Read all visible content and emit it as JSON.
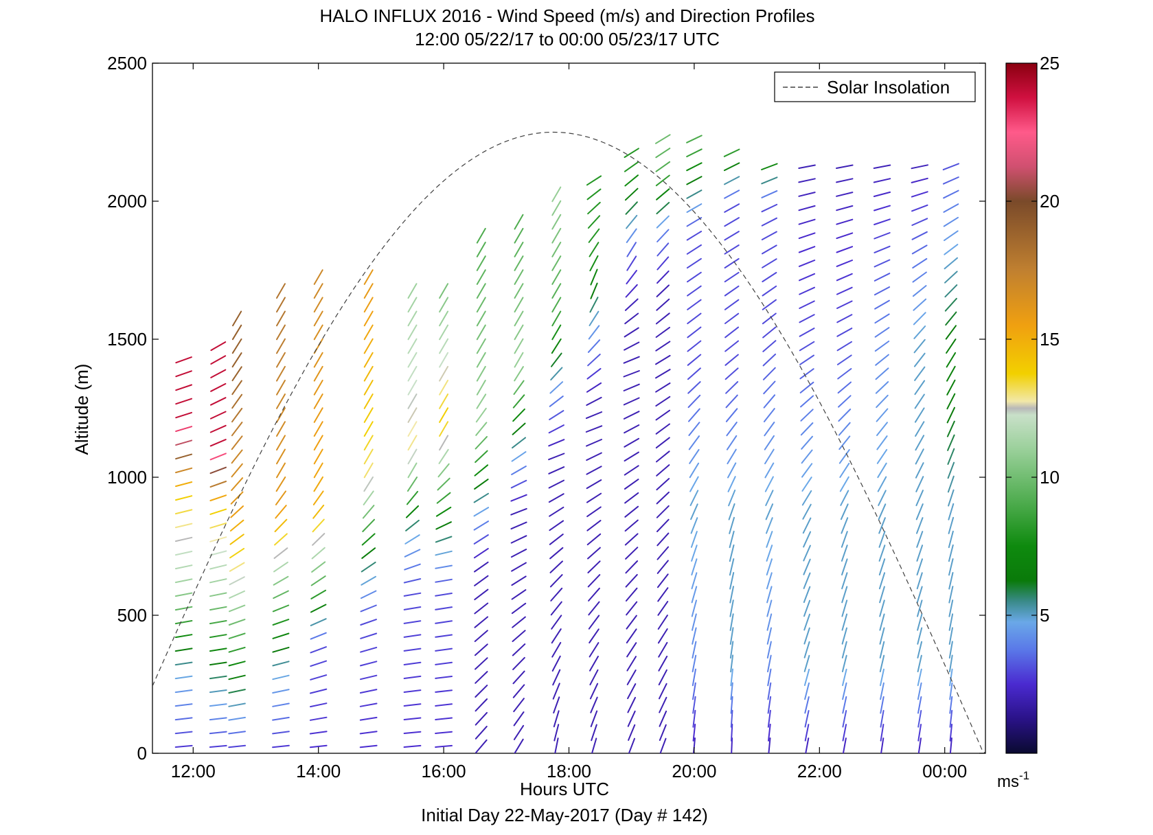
{
  "chart_data": {
    "type": "wind_profile",
    "title": "HALO INFLUX 2016 - Wind Speed (m/s) and Direction Profiles",
    "subtitle": "12:00 05/22/17 to 00:00 05/23/17  UTC",
    "xlabel": "Hours UTC",
    "ylabel": "Altitude (m)",
    "footer": "Initial Day 22-May-2017 (Day # 142)",
    "x_ticks": [
      "12:00",
      "14:00",
      "16:00",
      "18:00",
      "20:00",
      "22:00",
      "00:00"
    ],
    "y_ticks": [
      0,
      500,
      1000,
      1500,
      2000,
      2500
    ],
    "ylim": [
      0,
      2500
    ],
    "xlim_hours": [
      11.35,
      24.65
    ],
    "legend": {
      "label": "Solar Insolation",
      "position": "top-right"
    },
    "colorbar": {
      "ticks": [
        5,
        10,
        15,
        20,
        25
      ],
      "unit": "ms",
      "unit_exponent": "-1",
      "range": [
        0,
        25
      ]
    },
    "solar_insolation_peak_hour": 17.75,
    "solar_insolation_peak_altitude": 2250,
    "profiles": [
      {
        "t": 11.85,
        "top": 1450,
        "speeds": [
          [
            0,
            2.5
          ],
          [
            300,
            5
          ],
          [
            600,
            11
          ],
          [
            950,
            14
          ],
          [
            1200,
            24
          ]
        ],
        "dir": [
          [
            0,
            95
          ],
          [
            500,
            100
          ],
          [
            1000,
            105
          ],
          [
            1450,
            110
          ]
        ]
      },
      {
        "t": 12.4,
        "top": 1500,
        "speeds": [
          [
            0,
            2.5
          ],
          [
            300,
            6
          ],
          [
            600,
            11
          ],
          [
            900,
            14
          ],
          [
            1100,
            24
          ]
        ],
        "dir": [
          [
            0,
            95
          ],
          [
            500,
            100
          ],
          [
            1000,
            110
          ],
          [
            1450,
            120
          ]
        ]
      },
      {
        "t": 12.7,
        "top": 1600,
        "speeds": [
          [
            0,
            2.5
          ],
          [
            300,
            7
          ],
          [
            600,
            12
          ],
          [
            900,
            16
          ],
          [
            1400,
            19
          ]
        ],
        "dir": [
          [
            0,
            95
          ],
          [
            500,
            110
          ],
          [
            1000,
            140
          ],
          [
            1600,
            150
          ]
        ]
      },
      {
        "t": 13.4,
        "top": 1700,
        "speeds": [
          [
            0,
            2.5
          ],
          [
            300,
            5
          ],
          [
            600,
            10
          ],
          [
            900,
            16
          ],
          [
            1600,
            18
          ]
        ],
        "dir": [
          [
            0,
            95
          ],
          [
            500,
            110
          ],
          [
            1000,
            150
          ],
          [
            1700,
            150
          ]
        ]
      },
      {
        "t": 14.0,
        "top": 1750,
        "speeds": [
          [
            0,
            2.5
          ],
          [
            400,
            3
          ],
          [
            600,
            9
          ],
          [
            900,
            15
          ],
          [
            1700,
            17
          ]
        ],
        "dir": [
          [
            0,
            95
          ],
          [
            500,
            115
          ],
          [
            1000,
            150
          ],
          [
            1750,
            150
          ]
        ]
      },
      {
        "t": 14.8,
        "top": 1750,
        "speeds": [
          [
            0,
            2.5
          ],
          [
            500,
            3
          ],
          [
            700,
            6
          ],
          [
            1000,
            13
          ],
          [
            1700,
            16
          ]
        ],
        "dir": [
          [
            0,
            95
          ],
          [
            500,
            110
          ],
          [
            1000,
            150
          ],
          [
            1750,
            150
          ]
        ]
      },
      {
        "t": 15.5,
        "top": 1700,
        "speeds": [
          [
            0,
            2.5
          ],
          [
            600,
            3
          ],
          [
            800,
            5
          ],
          [
            1100,
            13
          ],
          [
            1700,
            11
          ]
        ],
        "dir": [
          [
            0,
            95
          ],
          [
            600,
            100
          ],
          [
            1000,
            150
          ],
          [
            1700,
            150
          ]
        ]
      },
      {
        "t": 16.0,
        "top": 1700,
        "speeds": [
          [
            0,
            2.5
          ],
          [
            600,
            3
          ],
          [
            800,
            6
          ],
          [
            1200,
            14
          ],
          [
            1700,
            10
          ]
        ],
        "dir": [
          [
            0,
            95
          ],
          [
            700,
            100
          ],
          [
            1100,
            150
          ],
          [
            1700,
            150
          ]
        ]
      },
      {
        "t": 16.6,
        "top": 1900,
        "speeds": [
          [
            0,
            2
          ],
          [
            700,
            2
          ],
          [
            900,
            5
          ],
          [
            1200,
            11
          ],
          [
            1900,
            9
          ]
        ],
        "dir": [
          [
            0,
            140
          ],
          [
            900,
            120
          ],
          [
            1300,
            150
          ],
          [
            1900,
            150
          ]
        ]
      },
      {
        "t": 17.2,
        "top": 1950,
        "speeds": [
          [
            0,
            2
          ],
          [
            900,
            2
          ],
          [
            1100,
            5
          ],
          [
            1400,
            11
          ],
          [
            1950,
            9
          ]
        ],
        "dir": [
          [
            0,
            150
          ],
          [
            900,
            110
          ],
          [
            1400,
            150
          ],
          [
            1950,
            150
          ]
        ]
      },
      {
        "t": 17.8,
        "top": 2050,
        "speeds": [
          [
            0,
            2
          ],
          [
            1100,
            2
          ],
          [
            1300,
            4
          ],
          [
            1600,
            9
          ],
          [
            2050,
            11
          ]
        ],
        "dir": [
          [
            0,
            170
          ],
          [
            1100,
            110
          ],
          [
            1500,
            150
          ],
          [
            2050,
            150
          ]
        ]
      },
      {
        "t": 18.4,
        "top": 2100,
        "speeds": [
          [
            0,
            2
          ],
          [
            1300,
            2
          ],
          [
            1500,
            4
          ],
          [
            1800,
            8
          ],
          [
            2100,
            8
          ]
        ],
        "dir": [
          [
            0,
            165
          ],
          [
            1200,
            110
          ],
          [
            1700,
            160
          ],
          [
            2100,
            120
          ]
        ]
      },
      {
        "t": 19.0,
        "top": 2200,
        "speeds": [
          [
            0,
            2
          ],
          [
            1600,
            2
          ],
          [
            1800,
            3
          ],
          [
            2100,
            8
          ],
          [
            2200,
            8
          ]
        ],
        "dir": [
          [
            0,
            160
          ],
          [
            1400,
            110
          ],
          [
            1800,
            150
          ],
          [
            2200,
            120
          ]
        ]
      },
      {
        "t": 19.5,
        "top": 2250,
        "speeds": [
          [
            0,
            2
          ],
          [
            1700,
            2
          ],
          [
            1900,
            4
          ],
          [
            2100,
            9
          ],
          [
            2250,
            10
          ]
        ],
        "dir": [
          [
            0,
            160
          ],
          [
            1400,
            120
          ],
          [
            1800,
            140
          ],
          [
            2250,
            120
          ]
        ]
      },
      {
        "t": 20.0,
        "top": 2250,
        "speeds": [
          [
            0,
            2
          ],
          [
            300,
            4
          ],
          [
            900,
            5
          ],
          [
            1400,
            3
          ],
          [
            1900,
            3
          ],
          [
            2200,
            9
          ]
        ],
        "dir": [
          [
            0,
            175
          ],
          [
            800,
            160
          ],
          [
            1400,
            130
          ],
          [
            2250,
            115
          ]
        ]
      },
      {
        "t": 20.6,
        "top": 2200,
        "speeds": [
          [
            0,
            2
          ],
          [
            300,
            5
          ],
          [
            900,
            5
          ],
          [
            1400,
            3
          ],
          [
            2000,
            3
          ],
          [
            2200,
            9
          ]
        ],
        "dir": [
          [
            0,
            178
          ],
          [
            800,
            165
          ],
          [
            1400,
            130
          ],
          [
            2200,
            115
          ]
        ]
      },
      {
        "t": 21.2,
        "top": 2150,
        "speeds": [
          [
            0,
            2
          ],
          [
            300,
            4
          ],
          [
            900,
            5
          ],
          [
            1500,
            3
          ],
          [
            2000,
            3
          ],
          [
            2150,
            8
          ]
        ],
        "dir": [
          [
            0,
            175
          ],
          [
            800,
            160
          ],
          [
            1500,
            130
          ],
          [
            2150,
            110
          ]
        ]
      },
      {
        "t": 21.8,
        "top": 2150,
        "speeds": [
          [
            0,
            2
          ],
          [
            300,
            5
          ],
          [
            900,
            5
          ],
          [
            1500,
            3
          ],
          [
            2150,
            2
          ]
        ],
        "dir": [
          [
            0,
            170
          ],
          [
            800,
            155
          ],
          [
            1500,
            120
          ],
          [
            2150,
            100
          ]
        ]
      },
      {
        "t": 22.4,
        "top": 2150,
        "speeds": [
          [
            0,
            2
          ],
          [
            300,
            5
          ],
          [
            900,
            5
          ],
          [
            1500,
            3
          ],
          [
            2150,
            2
          ]
        ],
        "dir": [
          [
            0,
            170
          ],
          [
            800,
            160
          ],
          [
            1500,
            120
          ],
          [
            2150,
            100
          ]
        ]
      },
      {
        "t": 23.0,
        "top": 2150,
        "speeds": [
          [
            0,
            2
          ],
          [
            300,
            5
          ],
          [
            900,
            5
          ],
          [
            1500,
            4
          ],
          [
            2150,
            2
          ]
        ],
        "dir": [
          [
            0,
            172
          ],
          [
            800,
            160
          ],
          [
            1500,
            125
          ],
          [
            2150,
            100
          ]
        ]
      },
      {
        "t": 23.6,
        "top": 2150,
        "speeds": [
          [
            0,
            2
          ],
          [
            300,
            5
          ],
          [
            900,
            5
          ],
          [
            1500,
            5
          ],
          [
            2150,
            2
          ]
        ],
        "dir": [
          [
            0,
            172
          ],
          [
            800,
            160
          ],
          [
            1500,
            140
          ],
          [
            2150,
            100
          ]
        ]
      },
      {
        "t": 24.1,
        "top": 2150,
        "speeds": [
          [
            0,
            2
          ],
          [
            300,
            5
          ],
          [
            900,
            5
          ],
          [
            1400,
            7
          ],
          [
            2150,
            3
          ]
        ],
        "dir": [
          [
            0,
            175
          ],
          [
            800,
            165
          ],
          [
            1400,
            150
          ],
          [
            2150,
            110
          ]
        ]
      }
    ]
  },
  "colors": {
    "axis": "#000000",
    "background": "#ffffff",
    "insolation": "#404040"
  }
}
